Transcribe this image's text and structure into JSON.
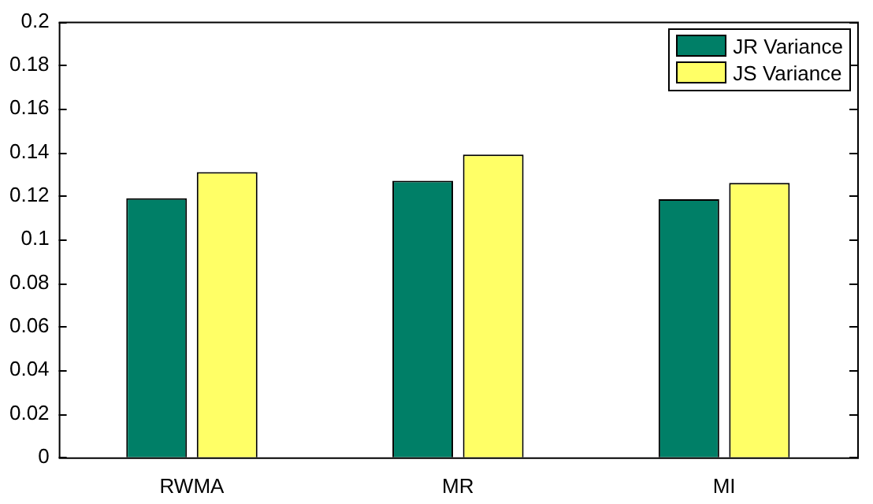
{
  "chart_data": {
    "type": "bar",
    "categories": [
      "RWMA",
      "MR",
      "MI"
    ],
    "series": [
      {
        "name": "JR Variance",
        "color": "#007f67",
        "values": [
          0.119,
          0.127,
          0.1185
        ]
      },
      {
        "name": "JS Variance",
        "color": "#ffff66",
        "values": [
          0.131,
          0.139,
          0.126
        ]
      }
    ],
    "ylim": [
      0,
      0.2
    ],
    "yticks": [
      0,
      0.02,
      0.04,
      0.06,
      0.08,
      0.1,
      0.12,
      0.14,
      0.16,
      0.18,
      0.2
    ],
    "grid": false,
    "legend": "top right"
  }
}
